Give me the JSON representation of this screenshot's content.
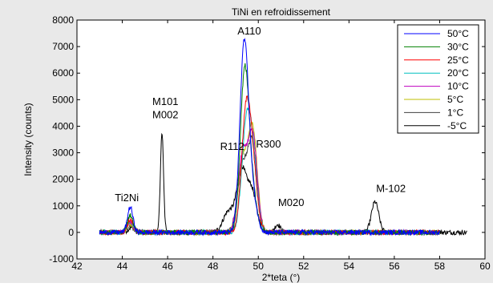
{
  "chart_data": {
    "type": "line",
    "title": "TiNi en refroidissement",
    "xlabel": "2*teta (°)",
    "ylabel": "Intensity (counts)",
    "xlim": [
      42,
      60
    ],
    "ylim": [
      -1000,
      8000
    ],
    "xticks": [
      "42",
      "44",
      "46",
      "48",
      "50",
      "52",
      "54",
      "56",
      "58",
      "60"
    ],
    "yticks": [
      "-1000",
      "0",
      "1000",
      "2000",
      "3000",
      "4000",
      "5000",
      "6000",
      "7000",
      "8000"
    ],
    "grid": false,
    "legend_position": "top-right",
    "series": [
      {
        "name": "50°C",
        "color": "#0000ff",
        "x_range": [
          43.0,
          58.0
        ],
        "peaks": [
          {
            "x": 44.35,
            "h": 950,
            "w": 0.12
          },
          {
            "x": 49.38,
            "h": 7100,
            "w": 0.19
          },
          {
            "x": 49.75,
            "h": 1200,
            "w": 0.2
          }
        ]
      },
      {
        "name": "30°C",
        "color": "#008000",
        "x_range": [
          43.0,
          58.0
        ],
        "peaks": [
          {
            "x": 44.35,
            "h": 650,
            "w": 0.13
          },
          {
            "x": 49.4,
            "h": 6000,
            "w": 0.19
          },
          {
            "x": 49.75,
            "h": 1300,
            "w": 0.2
          }
        ]
      },
      {
        "name": "25°C",
        "color": "#ff0000",
        "x_range": [
          43.0,
          58.0
        ],
        "peaks": [
          {
            "x": 44.35,
            "h": 500,
            "w": 0.13
          },
          {
            "x": 49.45,
            "h": 4200,
            "w": 0.2
          },
          {
            "x": 49.75,
            "h": 2200,
            "w": 0.2
          }
        ]
      },
      {
        "name": "20°C",
        "color": "#00bfbf",
        "x_range": [
          43.0,
          58.0
        ],
        "peaks": [
          {
            "x": 44.35,
            "h": 450,
            "w": 0.13
          },
          {
            "x": 49.45,
            "h": 3500,
            "w": 0.2
          },
          {
            "x": 49.75,
            "h": 2600,
            "w": 0.2
          }
        ]
      },
      {
        "name": "10°C",
        "color": "#bf00bf",
        "x_range": [
          43.0,
          58.0
        ],
        "peaks": [
          {
            "x": 44.35,
            "h": 380,
            "w": 0.13
          },
          {
            "x": 49.3,
            "h": 2800,
            "w": 0.2
          },
          {
            "x": 49.75,
            "h": 3600,
            "w": 0.2
          }
        ]
      },
      {
        "name": "5°C",
        "color": "#bfbf00",
        "x_range": [
          43.0,
          58.0
        ],
        "peaks": [
          {
            "x": 44.35,
            "h": 330,
            "w": 0.14
          },
          {
            "x": 49.3,
            "h": 2600,
            "w": 0.2
          },
          {
            "x": 49.75,
            "h": 3900,
            "w": 0.2
          }
        ]
      },
      {
        "name": "1°C",
        "color": "#404040",
        "x_range": [
          43.0,
          58.0
        ],
        "peaks": [
          {
            "x": 44.35,
            "h": 260,
            "w": 0.14
          },
          {
            "x": 49.3,
            "h": 2400,
            "w": 0.22
          },
          {
            "x": 49.75,
            "h": 3200,
            "w": 0.2
          }
        ]
      },
      {
        "name": "-5°C",
        "color": "#000000",
        "x_range": [
          43.0,
          59.2
        ],
        "peaks": [
          {
            "x": 44.4,
            "h": 180,
            "w": 0.14
          },
          {
            "x": 45.75,
            "h": 3750,
            "w": 0.07
          },
          {
            "x": 48.7,
            "h": 800,
            "w": 0.25
          },
          {
            "x": 49.25,
            "h": 2200,
            "w": 0.2
          },
          {
            "x": 49.7,
            "h": 1600,
            "w": 0.22
          },
          {
            "x": 50.85,
            "h": 300,
            "w": 0.12
          },
          {
            "x": 55.15,
            "h": 1150,
            "w": 0.16
          }
        ]
      }
    ],
    "annotations": [
      {
        "text": "A110",
        "x": 49.6,
        "y": 7450
      },
      {
        "text": "M101",
        "x": 45.9,
        "y": 4800
      },
      {
        "text": "M002",
        "x": 45.9,
        "y": 4300
      },
      {
        "text": "R112",
        "x": 48.85,
        "y": 3100
      },
      {
        "text": "R300",
        "x": 50.45,
        "y": 3200
      },
      {
        "text": "Ti2Ni",
        "x": 44.2,
        "y": 1180
      },
      {
        "text": "M020",
        "x": 51.45,
        "y": 1000
      },
      {
        "text": "M-102",
        "x": 55.85,
        "y": 1520
      }
    ]
  }
}
